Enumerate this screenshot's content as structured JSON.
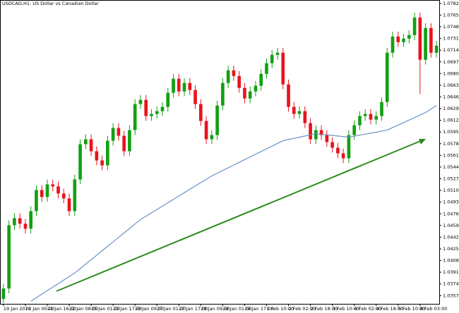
{
  "chart_data": {
    "type": "candlestick",
    "title": "USDCAD,H1:  US Dollar vs Canadian Dollar",
    "categories": [
      "19 Jan 2010",
      null,
      null,
      null,
      "21 Jan 00:00",
      null,
      null,
      null,
      "21 Jan 16:00",
      null,
      null,
      null,
      "22 Jan 08:00",
      null,
      null,
      null,
      "25 Jan 01:00",
      null,
      null,
      null,
      "25 Jan 17:00",
      null,
      null,
      null,
      "26 Jan 09:00",
      null,
      null,
      null,
      "27 Jan 01:00",
      null,
      null,
      null,
      "27 Jan 17:00",
      null,
      null,
      null,
      "28 Jan 09:00",
      null,
      null,
      null,
      "29 Jan 01:00",
      null,
      null,
      null,
      "29 Jan 17:00",
      null,
      null,
      null,
      "1 Feb 10:00",
      null,
      null,
      null,
      "2 Feb 02:00",
      null,
      null,
      null,
      "2 Feb 18:00",
      null,
      null,
      null,
      "3 Feb 10:00",
      null,
      null,
      null,
      "4 Feb 02:00",
      null,
      null,
      null,
      "4 Feb 18:00",
      null,
      null,
      null,
      "5 Feb 10:00",
      null,
      null,
      null,
      "8 Feb 03:00",
      null,
      null,
      null
    ],
    "candles": {
      "up_color": "#12a012",
      "down_color": "#e8141e",
      "open": [
        1.0352,
        1.03673,
        1.04594,
        1.04697,
        1.04615,
        1.04543,
        1.04799,
        1.05106,
        1.05004,
        1.05188,
        1.05158,
        1.05055,
        1.04984,
        1.04799,
        1.0526,
        1.05772,
        1.05844,
        1.0567,
        1.05536,
        1.05465,
        1.05823,
        1.06008,
        1.05895,
        1.0567,
        1.05977,
        1.06356,
        1.06417,
        1.06182,
        1.06212,
        1.06253,
        1.06315,
        1.0652,
        1.06724,
        1.0654,
        1.06663,
        1.0656,
        1.06356,
        1.0611,
        1.05844,
        1.05905,
        1.06335,
        1.06663,
        1.06847,
        1.06765,
        1.06591,
        1.06438,
        1.0654,
        1.06622,
        1.06796,
        1.0695,
        1.07072,
        1.07103,
        1.06642,
        1.06315,
        1.06212,
        1.06253,
        1.06079,
        1.05844,
        1.05977,
        1.05905,
        1.05803,
        1.05721,
        1.05639,
        1.05567,
        1.05905,
        1.06048,
        1.06182,
        1.06212,
        1.0613,
        1.06182,
        1.06386,
        1.07103,
        1.07339,
        1.07257,
        1.07308,
        1.07359,
        1.07615,
        1.07001,
        1.07462,
        1.07103
      ],
      "high": [
        1.03743,
        1.04664,
        1.04767,
        1.04767,
        1.04685,
        1.04869,
        1.05176,
        1.05176,
        1.05258,
        1.05258,
        1.05228,
        1.05125,
        1.05054,
        1.0533,
        1.05842,
        1.05914,
        1.05914,
        1.0574,
        1.05606,
        1.05893,
        1.06078,
        1.06078,
        1.05965,
        1.06047,
        1.06426,
        1.06487,
        1.06487,
        1.06282,
        1.06323,
        1.06385,
        1.0659,
        1.06794,
        1.06794,
        1.06733,
        1.06733,
        1.0663,
        1.06426,
        1.0618,
        1.05975,
        1.06405,
        1.06733,
        1.06917,
        1.06917,
        1.06835,
        1.06661,
        1.0661,
        1.06692,
        1.06866,
        1.0702,
        1.07142,
        1.07173,
        1.07173,
        1.06712,
        1.06385,
        1.06323,
        1.06323,
        1.06149,
        1.06047,
        1.06047,
        1.05975,
        1.05873,
        1.05791,
        1.05709,
        1.05975,
        1.06118,
        1.06252,
        1.06282,
        1.06282,
        1.06252,
        1.06456,
        1.07173,
        1.07409,
        1.07409,
        1.07378,
        1.07429,
        1.07685,
        1.07685,
        1.07532,
        1.07532,
        1.07276
      ],
      "low": [
        1.0346,
        1.03603,
        1.04524,
        1.04545,
        1.04473,
        1.04473,
        1.04729,
        1.04934,
        1.04934,
        1.05088,
        1.04985,
        1.04914,
        1.04729,
        1.04729,
        1.0519,
        1.05702,
        1.056,
        1.05466,
        1.05395,
        1.05395,
        1.05753,
        1.05825,
        1.056,
        1.056,
        1.05907,
        1.06286,
        1.06112,
        1.06112,
        1.06142,
        1.06183,
        1.06245,
        1.0645,
        1.0647,
        1.0647,
        1.0649,
        1.06286,
        1.0604,
        1.05774,
        1.05774,
        1.05835,
        1.06265,
        1.06593,
        1.06695,
        1.06521,
        1.06368,
        1.06368,
        1.0647,
        1.06552,
        1.06726,
        1.0688,
        1.07002,
        1.06572,
        1.06245,
        1.06142,
        1.06142,
        1.06009,
        1.05774,
        1.05774,
        1.05835,
        1.05733,
        1.05651,
        1.05569,
        1.05497,
        1.05497,
        1.05835,
        1.05978,
        1.06112,
        1.0606,
        1.0606,
        1.06112,
        1.06316,
        1.07033,
        1.07187,
        1.07187,
        1.07238,
        1.07289,
        1.065,
        1.06931,
        1.07033,
        1.07033
      ],
      "close": [
        1.03673,
        1.04594,
        1.04697,
        1.04615,
        1.04543,
        1.04799,
        1.05106,
        1.05004,
        1.05188,
        1.05158,
        1.05055,
        1.04984,
        1.04799,
        1.0526,
        1.05772,
        1.05844,
        1.0567,
        1.05536,
        1.05465,
        1.05823,
        1.06008,
        1.05895,
        1.0567,
        1.05977,
        1.06356,
        1.06417,
        1.06182,
        1.06212,
        1.06253,
        1.06315,
        1.0652,
        1.06724,
        1.0654,
        1.06663,
        1.0656,
        1.06356,
        1.0611,
        1.05844,
        1.05905,
        1.06335,
        1.06663,
        1.06847,
        1.06765,
        1.06591,
        1.06438,
        1.0654,
        1.06622,
        1.06796,
        1.0695,
        1.07072,
        1.07103,
        1.06642,
        1.06315,
        1.06212,
        1.06253,
        1.06079,
        1.05844,
        1.05977,
        1.05905,
        1.05803,
        1.05721,
        1.05639,
        1.05567,
        1.05905,
        1.06048,
        1.06182,
        1.06212,
        1.0613,
        1.06182,
        1.06386,
        1.07103,
        1.07339,
        1.07257,
        1.07308,
        1.07359,
        1.07615,
        1.07001,
        1.07462,
        1.07103,
        1.07206
      ]
    },
    "moving_average": {
      "color": "#6b93c4",
      "values": [
        null,
        null,
        null,
        null,
        null,
        1.03488,
        1.0354,
        1.03591,
        1.03642,
        1.03693,
        1.03744,
        1.03796,
        1.03847,
        1.03898,
        1.03963,
        1.04028,
        1.04093,
        1.04157,
        1.04223,
        1.04287,
        1.04352,
        1.04417,
        1.04482,
        1.04546,
        1.04612,
        1.04676,
        1.04725,
        1.04774,
        1.04823,
        1.04872,
        1.0492,
        1.04969,
        1.05018,
        1.05067,
        1.05116,
        1.05165,
        1.05214,
        1.05262,
        1.05311,
        1.0535,
        1.0539,
        1.05429,
        1.05469,
        1.05508,
        1.05548,
        1.05587,
        1.05627,
        1.05666,
        1.05705,
        1.05744,
        1.05784,
        1.05823,
        1.05841,
        1.05857,
        1.05874,
        1.05892,
        1.05908,
        1.05926,
        1.05917,
        1.05908,
        1.059,
        1.05892,
        1.05883,
        1.05874,
        1.05889,
        1.05904,
        1.05918,
        1.05933,
        1.05947,
        1.05963,
        1.05977,
        1.06014,
        1.0605,
        1.06086,
        1.06123,
        1.0616,
        1.06196,
        1.06233,
        1.06284,
        1.06335
      ]
    },
    "ylim": [
      1.0345,
      1.0787
    ],
    "yticks": [
      {
        "value": 1.0782,
        "label": "1.07820"
      },
      {
        "value": 1.0765,
        "label": "1.07650"
      },
      {
        "value": 1.0748,
        "label": "1.07480"
      },
      {
        "value": 1.0731,
        "label": "1.07310"
      },
      {
        "value": 1.0714,
        "label": "1.07140"
      },
      {
        "value": 1.0697,
        "label": "1.06970"
      },
      {
        "value": 1.068,
        "label": "1.06800"
      },
      {
        "value": 1.0663,
        "label": "1.06630"
      },
      {
        "value": 1.0646,
        "label": "1.06460"
      },
      {
        "value": 1.0629,
        "label": "1.06290"
      },
      {
        "value": 1.0612,
        "label": "1.06120"
      },
      {
        "value": 1.0595,
        "label": "1.05950"
      },
      {
        "value": 1.0578,
        "label": "1.05780"
      },
      {
        "value": 1.0561,
        "label": "1.05610"
      },
      {
        "value": 1.0544,
        "label": "1.05440"
      },
      {
        "value": 1.0527,
        "label": "1.05270"
      },
      {
        "value": 1.051,
        "label": "1.05100"
      },
      {
        "value": 1.0493,
        "label": "1.04930"
      },
      {
        "value": 1.0476,
        "label": "1.04760"
      },
      {
        "value": 1.0459,
        "label": "1.04590"
      },
      {
        "value": 1.0442,
        "label": "1.04420"
      },
      {
        "value": 1.0425,
        "label": "1.04250"
      },
      {
        "value": 1.0408,
        "label": "1.04080"
      },
      {
        "value": 1.0391,
        "label": "1.03910"
      },
      {
        "value": 1.0374,
        "label": "1.03740"
      },
      {
        "value": 1.0357,
        "label": "1.03570"
      }
    ],
    "grid": false
  }
}
